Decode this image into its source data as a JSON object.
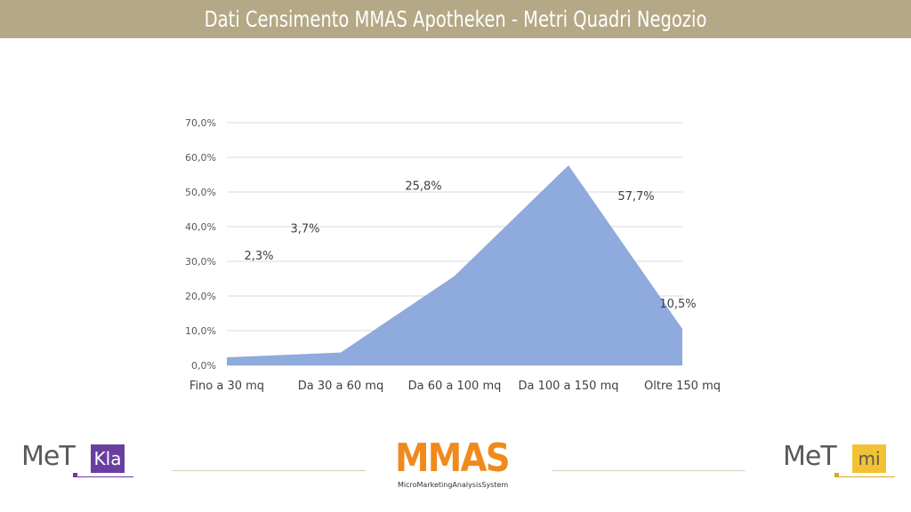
{
  "header": {
    "title": "Dati Censimento MMAS Apotheken - Metri Quadri Negozio"
  },
  "colors": {
    "title_bar": "#b4a886",
    "area_fill": "#8faadc",
    "gridline": "#d9d9d9"
  },
  "logos": {
    "left": {
      "text": "MeT",
      "badge": "Kla",
      "badge_color": "#6a3ea1"
    },
    "center": {
      "text": "MMAS",
      "subtitle": "MicroMarketingAnalysisSystem",
      "color": "#f08a1c"
    },
    "right": {
      "text": "MeT",
      "badge": "mi",
      "badge_color": "#f2c232"
    }
  },
  "chart_data": {
    "type": "area",
    "categories": [
      "Fino a 30 mq",
      "Da 30 a 60 mq",
      "Da 60 a 100 mq",
      "Da 100 a 150 mq",
      "Oltre 150 mq"
    ],
    "values": [
      2.3,
      3.7,
      25.8,
      57.7,
      10.5
    ],
    "data_labels": [
      "2,3%",
      "3,7%",
      "25,8%",
      "57,7%",
      "10,5%"
    ],
    "y_ticks": [
      "0,0%",
      "10,0%",
      "20,0%",
      "30,0%",
      "40,0%",
      "50,0%",
      "60,0%",
      "70,0%"
    ],
    "ylim": [
      0,
      70
    ],
    "grid": true,
    "title": "",
    "xlabel": "",
    "ylabel": ""
  }
}
